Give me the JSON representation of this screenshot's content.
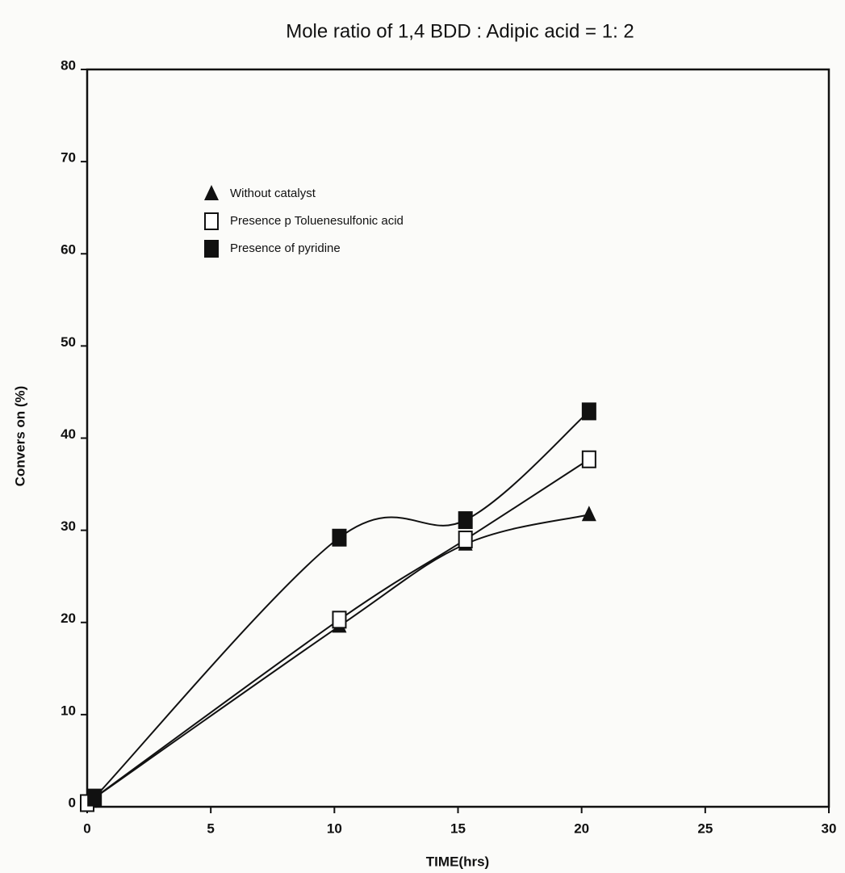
{
  "chart_data": {
    "type": "line",
    "title": "Mole ratio of 1,4 BDD : Adipic acid = 1: 2",
    "x_label": "TIME(hrs)",
    "y_label": "Convers on (%)",
    "xlim": [
      0,
      30
    ],
    "ylim": [
      0,
      80
    ],
    "xticks": [
      0,
      5,
      10,
      15,
      20,
      25,
      30
    ],
    "yticks": [
      0,
      10,
      20,
      30,
      40,
      50,
      60,
      70,
      80
    ],
    "legend": "upper left",
    "series": [
      {
        "name": "Without catalyst",
        "color": "#111111",
        "marker": "triangle",
        "x": [
          0.1,
          10.2,
          15.3,
          20.3
        ],
        "values": [
          0.6,
          19.6,
          28.5,
          31.7
        ]
      },
      {
        "name": "Presence p Toluenesulfonic acid",
        "color": "#111111",
        "marker": "open-square",
        "x": [
          0,
          10.2,
          15.3,
          20.3
        ],
        "values": [
          0.4,
          20.3,
          29,
          37.7
        ]
      },
      {
        "name": "Presence of pyridine",
        "color": "#111111",
        "marker": "filled-square",
        "x": [
          0.3,
          10.2,
          15.3,
          20.3
        ],
        "values": [
          1,
          29.2,
          31.1,
          42.9
        ]
      }
    ]
  }
}
